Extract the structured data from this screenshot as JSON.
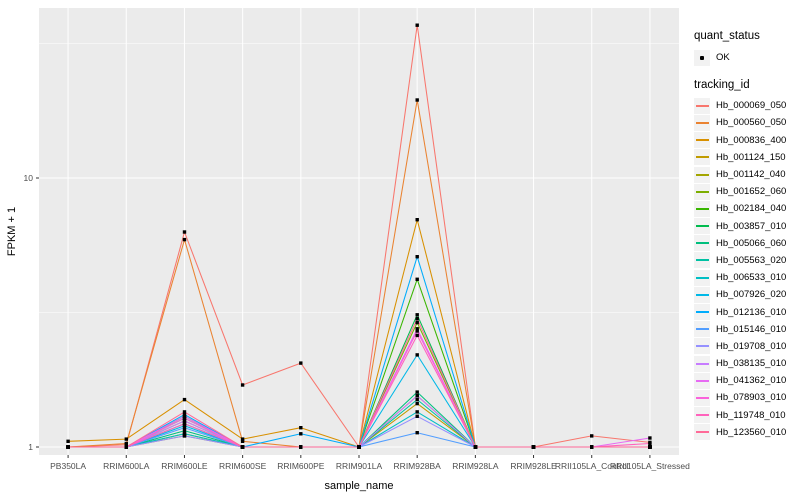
{
  "figure": {
    "background": "#FFFFFF",
    "panel_bg": "#EBEBEB",
    "grid_color": "#FFFFFF",
    "tick_color": "#333333",
    "tick_label_color": "#4D4D4D",
    "axis_title_color": "#000000",
    "point_color": "#000000"
  },
  "axes": {
    "x_title": "sample_name",
    "y_title": "FPKM + 1",
    "y_tick_labels": [
      "1",
      "10"
    ]
  },
  "legend": {
    "quant_status_title": "quant_status",
    "ok_label": "OK",
    "tracking_title": "tracking_id"
  },
  "chart_data": {
    "type": "line",
    "title": "",
    "xlabel": "sample_name",
    "ylabel": "FPKM + 1",
    "y_scale": "log10",
    "y_ticks": [
      1,
      10
    ],
    "y_minor_ticks": [
      3.1623,
      31.623
    ],
    "ylim": [
      0.93,
      43
    ],
    "grid": true,
    "legend_position": "right",
    "legend_groups": [
      {
        "title": "quant_status",
        "items": [
          "OK"
        ],
        "marker": "black-point"
      },
      {
        "title": "tracking_id",
        "items_from": "series"
      }
    ],
    "categories": [
      "PB350LA",
      "RRIM600LA",
      "RRIM600LE",
      "RRIM600SE",
      "RRIM600PE",
      "RRIM901LA",
      "RRIM928BA",
      "RRIM928LA",
      "RRIM928LE",
      "RRII105LA_Control",
      "RRII105LA_Stressed"
    ],
    "series": [
      {
        "name": "Hb_000069_050",
        "color": "#F8766D",
        "values": [
          1.0,
          1.02,
          6.3,
          1.7,
          2.05,
          1.0,
          37.0,
          1.0,
          1.0,
          1.1,
          1.04
        ]
      },
      {
        "name": "Hb_000560_050",
        "color": "#EA8331",
        "values": [
          1.0,
          1.03,
          5.9,
          1.05,
          1.0,
          1.0,
          19.5,
          1.0,
          1.0,
          1.0,
          1.0
        ]
      },
      {
        "name": "Hb_000836_400",
        "color": "#D89000",
        "values": [
          1.05,
          1.07,
          1.5,
          1.07,
          1.18,
          1.0,
          7.0,
          1.0,
          1.0,
          1.0,
          1.0
        ]
      },
      {
        "name": "Hb_001124_150",
        "color": "#C09B00",
        "values": [
          1.0,
          1.0,
          1.1,
          1.0,
          1.0,
          1.0,
          1.45,
          1.0,
          1.0,
          1.0,
          1.0
        ]
      },
      {
        "name": "Hb_001142_040",
        "color": "#A3A500",
        "values": [
          1.0,
          1.0,
          1.12,
          1.0,
          1.0,
          1.0,
          1.55,
          1.0,
          1.0,
          1.0,
          1.0
        ]
      },
      {
        "name": "Hb_001652_060",
        "color": "#7CAE00",
        "values": [
          1.0,
          1.0,
          1.25,
          1.0,
          1.0,
          1.0,
          2.9,
          1.0,
          1.0,
          1.0,
          1.0
        ]
      },
      {
        "name": "Hb_002184_040",
        "color": "#39B600",
        "values": [
          1.0,
          1.0,
          1.3,
          1.0,
          1.0,
          1.0,
          4.2,
          1.0,
          1.0,
          1.0,
          1.0
        ]
      },
      {
        "name": "Hb_003857_010",
        "color": "#00BB4E",
        "values": [
          1.0,
          1.0,
          1.28,
          1.0,
          1.0,
          1.0,
          3.1,
          1.0,
          1.0,
          1.0,
          1.0
        ]
      },
      {
        "name": "Hb_005066_060",
        "color": "#00BF7D",
        "values": [
          1.0,
          1.0,
          1.15,
          1.0,
          1.0,
          1.0,
          1.6,
          1.0,
          1.0,
          1.0,
          1.0
        ]
      },
      {
        "name": "Hb_005563_020",
        "color": "#00C1A3",
        "values": [
          1.0,
          1.0,
          1.22,
          1.0,
          1.0,
          1.0,
          1.5,
          1.0,
          1.0,
          1.0,
          1.0
        ]
      },
      {
        "name": "Hb_006533_010",
        "color": "#00BFC4",
        "values": [
          1.0,
          1.0,
          1.12,
          1.0,
          1.0,
          1.0,
          1.35,
          1.0,
          1.0,
          1.0,
          1.0
        ]
      },
      {
        "name": "Hb_007926_020",
        "color": "#00B8E7",
        "values": [
          1.0,
          1.0,
          1.2,
          1.0,
          1.0,
          1.0,
          2.2,
          1.0,
          1.0,
          1.0,
          1.0
        ]
      },
      {
        "name": "Hb_012136_010",
        "color": "#00ACFC",
        "values": [
          1.0,
          1.0,
          1.32,
          1.0,
          1.12,
          1.0,
          5.1,
          1.0,
          1.0,
          1.0,
          1.0
        ]
      },
      {
        "name": "Hb_015146_010",
        "color": "#529EFF",
        "values": [
          1.0,
          1.0,
          1.18,
          1.0,
          1.0,
          1.0,
          1.13,
          1.0,
          1.0,
          1.0,
          1.0
        ]
      },
      {
        "name": "Hb_019708_010",
        "color": "#9590FF",
        "values": [
          1.0,
          1.0,
          1.1,
          1.0,
          1.0,
          1.0,
          1.3,
          1.0,
          1.0,
          1.0,
          1.0
        ]
      },
      {
        "name": "Hb_038135_010",
        "color": "#C77CFF",
        "values": [
          1.0,
          1.0,
          1.25,
          1.0,
          1.0,
          1.0,
          1.55,
          1.0,
          1.0,
          1.0,
          1.0
        ]
      },
      {
        "name": "Hb_041362_010",
        "color": "#E76BF3",
        "values": [
          1.0,
          1.0,
          1.3,
          1.0,
          1.0,
          1.0,
          2.75,
          1.0,
          1.0,
          1.0,
          1.08
        ]
      },
      {
        "name": "Hb_078903_010",
        "color": "#FA62DB",
        "values": [
          1.0,
          1.0,
          1.28,
          1.0,
          1.0,
          1.0,
          2.7,
          1.0,
          1.0,
          1.0,
          1.0
        ]
      },
      {
        "name": "Hb_119748_010",
        "color": "#FF62BC",
        "values": [
          1.0,
          1.0,
          1.22,
          1.0,
          1.0,
          1.0,
          2.6,
          1.0,
          1.0,
          1.0,
          1.03
        ]
      },
      {
        "name": "Hb_123560_010",
        "color": "#FF6A98",
        "values": [
          1.0,
          1.0,
          1.35,
          1.0,
          1.0,
          1.0,
          3.0,
          1.0,
          1.0,
          1.0,
          1.0
        ]
      }
    ]
  }
}
